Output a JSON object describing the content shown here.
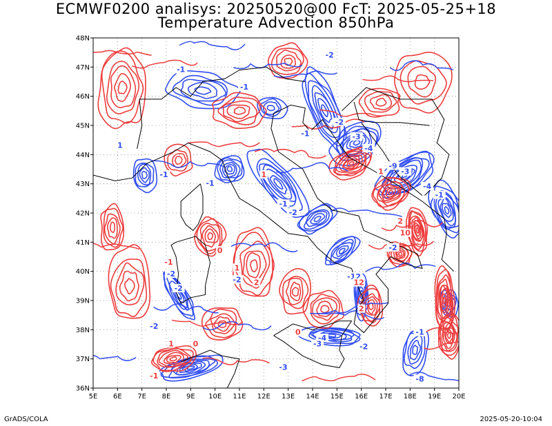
{
  "title_line1": "ECMWF0200 analisys: 20250520@00 FcT: 2025-05-25+18",
  "title_line2": "Temperature Advection 850hPa",
  "footer_left": "GrADS/COLA",
  "footer_right": "2025-05-20-10:04",
  "map": {
    "lon_range": [
      5,
      20
    ],
    "lat_range": [
      36,
      48
    ],
    "lon_ticks": [
      "5E",
      "6E",
      "7E",
      "8E",
      "9E",
      "10E",
      "11E",
      "12E",
      "13E",
      "14E",
      "15E",
      "16E",
      "17E",
      "18E",
      "19E",
      "20E"
    ],
    "lat_ticks": [
      "36N",
      "37N",
      "38N",
      "39N",
      "40N",
      "41N",
      "42N",
      "43N",
      "44N",
      "45N",
      "46N",
      "47N",
      "48N"
    ],
    "grid": true,
    "colors": {
      "warm": "#ee3b3b",
      "cold": "#2f4cf2",
      "coast": "#000000",
      "frame": "#000000",
      "grid": "#888888"
    },
    "contour_labels": [
      {
        "t": "1",
        "lon": 6.1,
        "lat": 44.3,
        "c": "cold"
      },
      {
        "t": "-1",
        "lon": 8.6,
        "lat": 46.9,
        "c": "cold"
      },
      {
        "t": "-1",
        "lon": 11.2,
        "lat": 46.3,
        "c": "cold"
      },
      {
        "t": "-2",
        "lon": 14.7,
        "lat": 47.4,
        "c": "cold"
      },
      {
        "t": "-1",
        "lon": 13.7,
        "lat": 44.7,
        "c": "cold"
      },
      {
        "t": "-2",
        "lon": 15.1,
        "lat": 45.1,
        "c": "cold"
      },
      {
        "t": "-3",
        "lon": 15.8,
        "lat": 44.6,
        "c": "cold"
      },
      {
        "t": "-4",
        "lon": 16.3,
        "lat": 44.2,
        "c": "cold"
      },
      {
        "t": "-1",
        "lon": 7.9,
        "lat": 43.3,
        "c": "cold"
      },
      {
        "t": "-1",
        "lon": 9.8,
        "lat": 43.0,
        "c": "cold"
      },
      {
        "t": "1",
        "lon": 12.0,
        "lat": 43.3,
        "c": "warm"
      },
      {
        "t": "-1",
        "lon": 12.8,
        "lat": 42.3,
        "c": "cold"
      },
      {
        "t": "-2",
        "lon": 13.2,
        "lat": 42.0,
        "c": "cold"
      },
      {
        "t": "-3",
        "lon": 17.8,
        "lat": 43.4,
        "c": "cold"
      },
      {
        "t": "-9",
        "lon": 17.3,
        "lat": 43.6,
        "c": "cold"
      },
      {
        "t": "1",
        "lon": 16.8,
        "lat": 43.4,
        "c": "warm"
      },
      {
        "t": "-4",
        "lon": 18.7,
        "lat": 42.9,
        "c": "cold"
      },
      {
        "t": "-1",
        "lon": 19.2,
        "lat": 42.6,
        "c": "cold"
      },
      {
        "t": "10",
        "lon": 17.8,
        "lat": 41.3,
        "c": "warm"
      },
      {
        "t": "2",
        "lon": 17.6,
        "lat": 41.7,
        "c": "warm"
      },
      {
        "t": "-2",
        "lon": 17.3,
        "lat": 40.8,
        "c": "cold"
      },
      {
        "t": "-1",
        "lon": 8.1,
        "lat": 40.3,
        "c": "warm"
      },
      {
        "t": "-2",
        "lon": 8.2,
        "lat": 39.9,
        "c": "cold"
      },
      {
        "t": "0",
        "lon": 10.2,
        "lat": 40.7,
        "c": "warm"
      },
      {
        "t": "1",
        "lon": 10.9,
        "lat": 40.1,
        "c": "warm"
      },
      {
        "t": "-2",
        "lon": 10.9,
        "lat": 39.7,
        "c": "cold"
      },
      {
        "t": "2",
        "lon": 11.7,
        "lat": 39.6,
        "c": "warm"
      },
      {
        "t": "-12",
        "lon": 15.7,
        "lat": 39.8,
        "c": "cold"
      },
      {
        "t": "12",
        "lon": 15.9,
        "lat": 39.6,
        "c": "warm"
      },
      {
        "t": "2",
        "lon": 16.0,
        "lat": 38.7,
        "c": "warm"
      },
      {
        "t": "-2",
        "lon": 8.5,
        "lat": 39.4,
        "c": "cold"
      },
      {
        "t": "-2",
        "lon": 7.5,
        "lat": 38.1,
        "c": "cold"
      },
      {
        "t": "1",
        "lon": 8.2,
        "lat": 37.5,
        "c": "warm"
      },
      {
        "t": "0",
        "lon": 9.2,
        "lat": 37.5,
        "c": "warm"
      },
      {
        "t": "-4",
        "lon": 14.4,
        "lat": 37.7,
        "c": "cold"
      },
      {
        "t": "-3",
        "lon": 14.2,
        "lat": 37.5,
        "c": "cold"
      },
      {
        "t": "-2",
        "lon": 16.1,
        "lat": 37.4,
        "c": "cold"
      },
      {
        "t": "-8",
        "lon": 18.4,
        "lat": 36.3,
        "c": "cold"
      },
      {
        "t": "-1",
        "lon": 18.4,
        "lat": 37.9,
        "c": "cold"
      },
      {
        "t": "-1",
        "lon": 7.5,
        "lat": 36.4,
        "c": "warm"
      },
      {
        "t": "0",
        "lon": 13.4,
        "lat": 37.9,
        "c": "warm"
      },
      {
        "t": "-3",
        "lon": 12.8,
        "lat": 36.7,
        "c": "cold"
      }
    ]
  }
}
